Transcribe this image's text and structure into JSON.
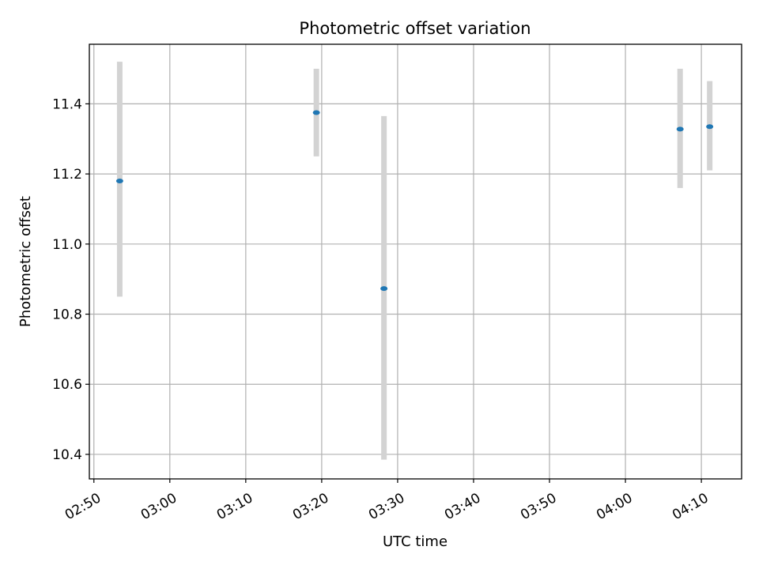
{
  "chart_data": {
    "type": "scatter",
    "title": "Photometric offset variation",
    "xlabel": "UTC time",
    "ylabel": "Photometric offset",
    "x_tick_labels": [
      "02:50",
      "03:00",
      "03:10",
      "03:20",
      "03:30",
      "03:40",
      "03:50",
      "04:00",
      "04:10"
    ],
    "x_ticks_min": [
      170,
      180,
      190,
      200,
      210,
      220,
      230,
      240,
      250
    ],
    "xlim_min": [
      169.4,
      255.3
    ],
    "y_ticks": [
      10.4,
      10.6,
      10.8,
      11.0,
      11.2,
      11.4
    ],
    "y_tick_labels": [
      "10.4",
      "10.6",
      "10.8",
      "11.0",
      "11.2",
      "11.4"
    ],
    "ylim": [
      10.33,
      11.57
    ],
    "grid": true,
    "colors": {
      "point": "#1f77b4",
      "errorbar": "#d3d3d3",
      "grid": "#b0b0b0"
    },
    "points": [
      {
        "time": "02:53:24",
        "x_min": 173.4,
        "y": 11.18,
        "yerr_low": 10.85,
        "yerr_high": 11.52
      },
      {
        "time": "03:19:18",
        "x_min": 199.3,
        "y": 11.375,
        "yerr_low": 11.25,
        "yerr_high": 11.5
      },
      {
        "time": "03:28:12",
        "x_min": 208.2,
        "y": 10.873,
        "yerr_low": 10.385,
        "yerr_high": 11.365
      },
      {
        "time": "04:07:12",
        "x_min": 247.2,
        "y": 11.328,
        "yerr_low": 11.16,
        "yerr_high": 11.5
      },
      {
        "time": "04:11:06",
        "x_min": 251.1,
        "y": 11.335,
        "yerr_low": 11.21,
        "yerr_high": 11.465
      }
    ]
  }
}
